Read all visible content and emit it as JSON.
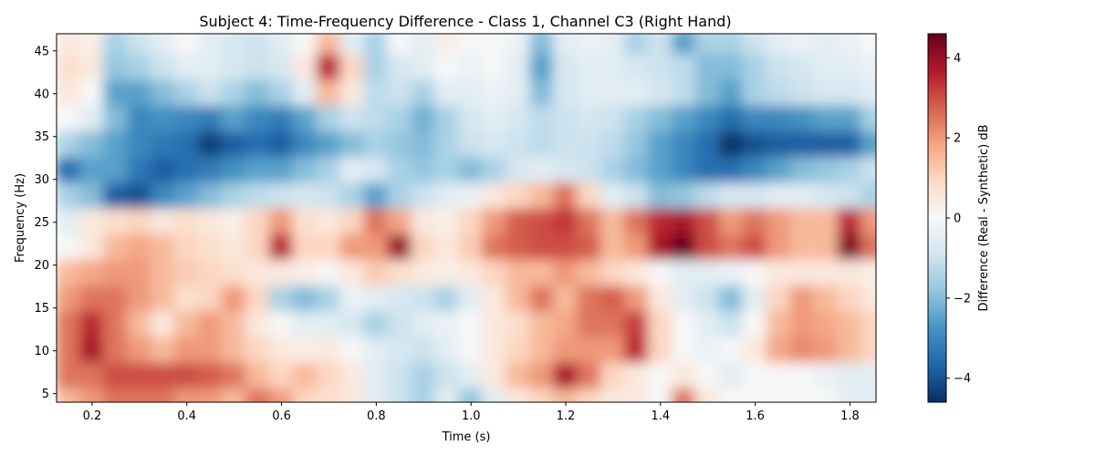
{
  "chart_data": {
    "type": "heatmap",
    "title": "Subject 4: Time-Frequency Difference - Class 1, Channel C3 (Right Hand)",
    "xlabel": "Time (s)",
    "ylabel": "Frequency (Hz)",
    "xlim": [
      0.125,
      1.855
    ],
    "ylim": [
      4,
      47
    ],
    "xticks": [
      0.2,
      0.4,
      0.6,
      0.8,
      1.0,
      1.2,
      1.4,
      1.6,
      1.8
    ],
    "xtick_labels": [
      "0.2",
      "0.4",
      "0.6",
      "0.8",
      "1.0",
      "1.2",
      "1.4",
      "1.6",
      "1.8"
    ],
    "yticks": [
      5,
      10,
      15,
      20,
      25,
      30,
      35,
      40,
      45
    ],
    "ytick_labels": [
      "5",
      "10",
      "15",
      "20",
      "25",
      "30",
      "35",
      "40",
      "45"
    ],
    "colormap": "RdBu_r",
    "colorbar": {
      "label": "Difference (Real - Synthetic) dB",
      "vmin": -4.6,
      "vmax": 4.6,
      "ticks": [
        -4,
        -2,
        0,
        2,
        4
      ],
      "tick_labels": [
        "−4",
        "−2",
        "0",
        "2",
        "4"
      ]
    },
    "x": [
      0.15,
      0.2,
      0.25,
      0.3,
      0.35,
      0.4,
      0.45,
      0.5,
      0.55,
      0.6,
      0.65,
      0.7,
      0.75,
      0.8,
      0.85,
      0.9,
      0.95,
      1.0,
      1.05,
      1.1,
      1.15,
      1.2,
      1.25,
      1.3,
      1.35,
      1.4,
      1.45,
      1.5,
      1.55,
      1.6,
      1.65,
      1.7,
      1.75,
      1.8,
      1.85
    ],
    "y": [
      46,
      43,
      40,
      37,
      34,
      31,
      28,
      25,
      22,
      19,
      16,
      13,
      10,
      7,
      4
    ],
    "z": [
      [
        0.5,
        0.3,
        -1.5,
        -1.0,
        -0.5,
        0.0,
        -0.5,
        -0.8,
        -1.0,
        -0.5,
        0.0,
        1.5,
        -0.5,
        -1.5,
        0.0,
        -0.5,
        0.3,
        0.0,
        0.0,
        -0.3,
        -2.0,
        -0.5,
        -0.3,
        -0.5,
        -1.5,
        -1.0,
        -2.5,
        -1.5,
        -1.5,
        -1.0,
        -0.5,
        -0.3,
        -0.5,
        -0.3,
        0.0
      ],
      [
        0.8,
        0.5,
        -1.8,
        -1.5,
        -1.0,
        -0.5,
        -0.5,
        -0.8,
        -1.0,
        -0.8,
        0.5,
        3.5,
        1.0,
        -1.5,
        -0.8,
        -0.5,
        0.0,
        -0.3,
        0.0,
        -0.5,
        -2.5,
        -0.8,
        -0.5,
        -0.5,
        -0.8,
        -1.0,
        -1.2,
        -2.0,
        -2.0,
        -1.5,
        -1.0,
        -0.8,
        -0.5,
        -0.5,
        -0.3
      ],
      [
        0.5,
        0.0,
        -2.5,
        -2.5,
        -2.0,
        -1.5,
        -1.0,
        -1.5,
        -2.0,
        -1.5,
        -0.5,
        1.5,
        0.5,
        -1.2,
        -1.0,
        -1.5,
        -0.5,
        -0.5,
        -0.3,
        -0.5,
        -2.0,
        -0.8,
        -0.5,
        -0.5,
        -0.5,
        -0.8,
        -1.2,
        -2.0,
        -2.5,
        -1.5,
        -1.2,
        -1.0,
        -0.8,
        -0.8,
        -0.5
      ],
      [
        0.0,
        -0.5,
        -2.0,
        -3.0,
        -2.8,
        -3.0,
        -3.2,
        -2.5,
        -3.0,
        -3.2,
        -2.5,
        -1.5,
        -1.0,
        -1.2,
        -1.5,
        -2.2,
        -1.5,
        -0.8,
        -0.5,
        -0.8,
        -1.2,
        -1.0,
        -0.8,
        -1.0,
        -1.5,
        -2.0,
        -2.5,
        -3.0,
        -3.5,
        -3.0,
        -3.0,
        -2.8,
        -2.5,
        -2.5,
        -1.5
      ],
      [
        -1.5,
        -2.0,
        -2.5,
        -3.0,
        -3.3,
        -3.5,
        -4.3,
        -3.8,
        -3.5,
        -3.8,
        -3.0,
        -2.5,
        -2.0,
        -1.5,
        -1.8,
        -2.0,
        -1.5,
        -1.0,
        -0.8,
        -1.0,
        -1.2,
        -1.0,
        -1.0,
        -1.2,
        -1.8,
        -2.5,
        -3.0,
        -3.5,
        -4.5,
        -4.0,
        -3.8,
        -3.8,
        -3.8,
        -3.8,
        -2.5
      ],
      [
        -3.5,
        -2.5,
        -2.5,
        -3.3,
        -3.8,
        -3.5,
        -3.2,
        -2.8,
        -2.5,
        -2.5,
        -2.0,
        -1.5,
        -0.5,
        -0.8,
        -1.5,
        -1.8,
        -1.5,
        -2.0,
        -1.5,
        -0.8,
        -0.5,
        -0.8,
        -1.0,
        -1.5,
        -2.0,
        -2.5,
        -3.0,
        -3.5,
        -3.5,
        -3.0,
        -2.5,
        -2.0,
        -1.8,
        -1.5,
        -1.0
      ],
      [
        -1.5,
        -2.0,
        -3.8,
        -4.0,
        -3.0,
        -2.5,
        -2.0,
        -1.5,
        -1.2,
        -1.0,
        -0.8,
        -1.0,
        -1.5,
        -2.5,
        -1.5,
        -1.0,
        -0.5,
        -0.3,
        0.5,
        1.0,
        1.5,
        2.5,
        1.0,
        -0.5,
        -1.0,
        -2.0,
        -1.8,
        -1.2,
        -0.8,
        -0.8,
        -0.5,
        -0.5,
        -0.8,
        -1.0,
        -1.5
      ],
      [
        -0.5,
        0.5,
        0.8,
        1.0,
        0.5,
        0.8,
        0.5,
        0.3,
        1.0,
        2.0,
        0.8,
        0.5,
        1.0,
        2.5,
        1.8,
        0.5,
        0.3,
        1.0,
        2.0,
        2.8,
        3.0,
        3.3,
        2.5,
        1.5,
        2.5,
        3.5,
        3.8,
        3.0,
        2.0,
        2.5,
        2.0,
        1.5,
        1.5,
        3.5,
        2.0
      ],
      [
        0.0,
        0.5,
        1.5,
        1.8,
        1.5,
        1.0,
        0.8,
        0.5,
        1.0,
        3.5,
        1.0,
        1.0,
        2.0,
        2.0,
        4.0,
        1.0,
        0.5,
        1.2,
        2.5,
        2.8,
        3.0,
        3.0,
        2.8,
        1.5,
        2.0,
        3.8,
        4.5,
        3.0,
        2.5,
        3.0,
        2.0,
        1.5,
        1.5,
        4.3,
        2.5
      ],
      [
        1.5,
        1.8,
        2.0,
        2.0,
        1.5,
        1.2,
        1.0,
        0.8,
        0.5,
        0.5,
        0.3,
        0.0,
        0.5,
        1.2,
        0.8,
        0.5,
        0.3,
        0.5,
        1.0,
        1.5,
        1.5,
        2.0,
        1.5,
        1.0,
        0.5,
        0.0,
        -0.5,
        -0.5,
        -0.3,
        0.0,
        0.5,
        0.5,
        0.5,
        0.5,
        0.3
      ],
      [
        2.0,
        2.5,
        2.5,
        2.0,
        1.5,
        0.8,
        1.0,
        2.0,
        1.0,
        -1.5,
        -2.0,
        -1.5,
        -0.3,
        -0.5,
        -0.8,
        -1.0,
        -1.5,
        -0.5,
        0.5,
        1.5,
        2.5,
        1.5,
        2.5,
        2.8,
        2.0,
        0.5,
        -0.5,
        -1.0,
        -2.0,
        -0.5,
        1.0,
        2.0,
        1.5,
        1.0,
        0.5
      ],
      [
        2.5,
        3.5,
        2.5,
        1.5,
        0.5,
        1.5,
        2.0,
        1.5,
        0.5,
        0.0,
        -0.5,
        -0.5,
        -0.8,
        -1.5,
        -1.0,
        -0.5,
        -0.3,
        0.0,
        0.5,
        0.8,
        1.5,
        1.8,
        2.5,
        2.5,
        3.2,
        1.0,
        0.0,
        -0.5,
        -1.0,
        0.0,
        1.5,
        2.0,
        1.8,
        1.5,
        1.0
      ],
      [
        2.5,
        3.8,
        2.5,
        2.0,
        1.5,
        2.0,
        2.0,
        1.5,
        1.0,
        0.5,
        0.3,
        0.5,
        0.0,
        -0.5,
        -0.8,
        -1.0,
        -0.5,
        0.0,
        0.5,
        1.0,
        1.5,
        2.0,
        2.0,
        2.0,
        3.5,
        1.0,
        0.0,
        -0.3,
        0.0,
        0.5,
        1.8,
        2.2,
        2.0,
        1.5,
        1.0
      ],
      [
        2.5,
        2.5,
        3.0,
        3.0,
        3.0,
        3.0,
        2.8,
        2.5,
        1.5,
        1.0,
        1.5,
        1.0,
        0.5,
        -0.5,
        -1.0,
        -1.5,
        -1.0,
        -0.5,
        0.5,
        1.5,
        2.0,
        3.8,
        2.5,
        1.0,
        0.5,
        0.0,
        0.5,
        0.0,
        -0.5,
        0.0,
        0.0,
        0.0,
        -0.3,
        -0.5,
        -0.5
      ],
      [
        1.5,
        2.0,
        2.5,
        2.5,
        2.5,
        2.0,
        2.0,
        1.5,
        2.5,
        2.0,
        1.0,
        0.8,
        0.5,
        -0.5,
        -1.0,
        -1.5,
        -0.5,
        -1.8,
        -0.5,
        0.5,
        1.0,
        1.5,
        1.0,
        0.5,
        0.5,
        0.0,
        2.5,
        0.5,
        0.0,
        0.0,
        0.0,
        0.0,
        0.0,
        -0.5,
        -0.5
      ]
    ]
  }
}
